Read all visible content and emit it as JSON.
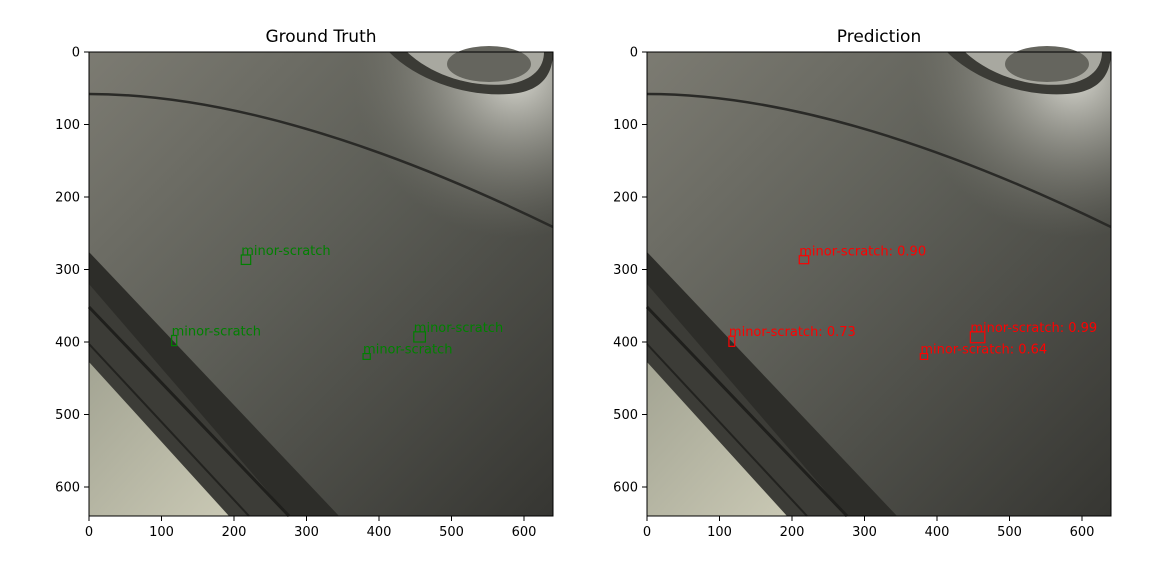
{
  "chart_data": [
    {
      "type": "image-with-boxes",
      "title": "Ground Truth",
      "xlim": [
        0,
        640
      ],
      "ylim": [
        640,
        0
      ],
      "xticks": [
        "0",
        "100",
        "200",
        "300",
        "400",
        "500",
        "600"
      ],
      "yticks": [
        "0",
        "100",
        "200",
        "300",
        "400",
        "500",
        "600"
      ],
      "box_color": "#008000",
      "boxes": [
        {
          "label": "minor-scratch",
          "x0": 210,
          "y0": 280,
          "x1": 223,
          "y1": 293
        },
        {
          "label": "minor-scratch",
          "x0": 114,
          "y0": 391,
          "x1": 121,
          "y1": 405
        },
        {
          "label": "minor-scratch",
          "x0": 448,
          "y0": 386,
          "x1": 464,
          "y1": 400
        },
        {
          "label": "minor-scratch",
          "x0": 378,
          "y0": 416,
          "x1": 388,
          "y1": 424
        }
      ]
    },
    {
      "type": "image-with-boxes",
      "title": "Prediction",
      "xlim": [
        0,
        640
      ],
      "ylim": [
        640,
        0
      ],
      "xticks": [
        "0",
        "100",
        "200",
        "300",
        "400",
        "500",
        "600"
      ],
      "yticks": [
        "0",
        "100",
        "200",
        "300",
        "400",
        "500",
        "600"
      ],
      "box_color": "#ff0000",
      "boxes": [
        {
          "label": "minor-scratch: 0.90",
          "x0": 210,
          "y0": 281,
          "x1": 223,
          "y1": 292
        },
        {
          "label": "minor-scratch: 0.73",
          "x0": 113,
          "y0": 392,
          "x1": 121,
          "y1": 406
        },
        {
          "label": "minor-scratch: 0.99",
          "x0": 446,
          "y0": 386,
          "x1": 466,
          "y1": 401
        },
        {
          "label": "minor-scratch: 0.64",
          "x0": 377,
          "y0": 416,
          "x1": 387,
          "y1": 424
        }
      ]
    }
  ]
}
